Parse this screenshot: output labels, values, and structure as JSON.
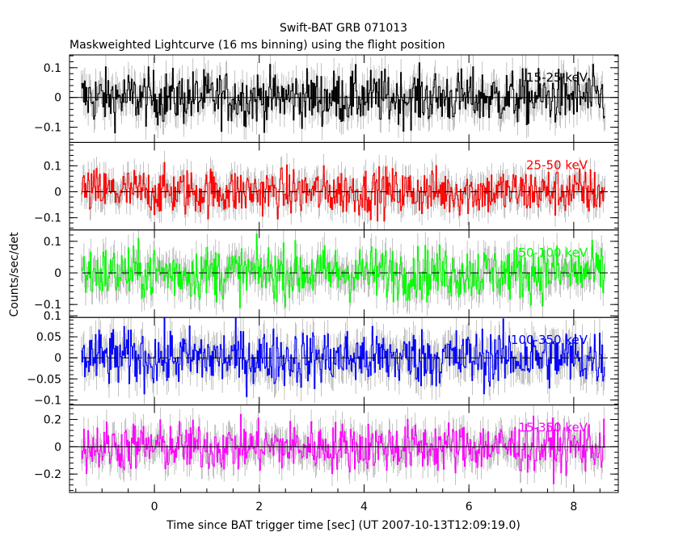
{
  "chart_data": {
    "type": "line",
    "title": "Swift-BAT GRB 071013",
    "subtitle": "Maskweighted Lightcurve (16 ms binning) using the flight position",
    "xlabel": "Time since BAT trigger time [sec] (UT 2007-10-13T12:09:19.0)",
    "ylabel": "Counts/sec/det",
    "xlim": [
      -1.62,
      8.85
    ],
    "x_ticks": [
      "0",
      "2",
      "4",
      "6",
      "8"
    ],
    "x_tick_values": [
      0,
      2,
      4,
      6,
      8
    ],
    "bin_width_sec": 0.016,
    "data_range": [
      -1.4,
      8.6
    ],
    "panels": [
      {
        "name": "15-25 keV",
        "color": "#000000",
        "ylim": [
          -0.151,
          0.143
        ],
        "y_ticks": [
          "0.1",
          "0",
          "-0.1"
        ],
        "y_tick_values": [
          0.1,
          0,
          -0.1
        ],
        "noise_rms": 0.045,
        "zero_line": "solid"
      },
      {
        "name": "25-50 keV",
        "color": "#ff0000",
        "ylim": [
          -0.147,
          0.19
        ],
        "y_ticks": [
          "0.1",
          "0",
          "-0.1"
        ],
        "y_tick_values": [
          0.1,
          0,
          -0.1
        ],
        "noise_rms": 0.045,
        "zero_line": "dashed"
      },
      {
        "name": "50-100 keV",
        "color": "#00ff00",
        "ylim": [
          -0.141,
          0.136
        ],
        "y_ticks": [
          "0.1",
          "0",
          "-0.1"
        ],
        "y_tick_values": [
          0.1,
          0,
          -0.1
        ],
        "noise_rms": 0.042,
        "zero_line": "dashed"
      },
      {
        "name": "100-350 keV",
        "color": "#0000ff",
        "ylim": [
          -0.112,
          0.096
        ],
        "y_ticks": [
          "0.1",
          "0.05",
          "0",
          "-0.05",
          "-0.1"
        ],
        "y_tick_values": [
          0.1,
          0.05,
          0,
          -0.05,
          -0.1
        ],
        "noise_rms": 0.034,
        "zero_line": "dashed"
      },
      {
        "name": "15-350 keV",
        "color": "#ff00ff",
        "ylim": [
          -0.335,
          0.306
        ],
        "y_ticks": [
          "0.2",
          "0",
          "-0.2"
        ],
        "y_tick_values": [
          0.2,
          0,
          -0.2
        ],
        "noise_rms": 0.09,
        "zero_line": "solid"
      }
    ]
  }
}
